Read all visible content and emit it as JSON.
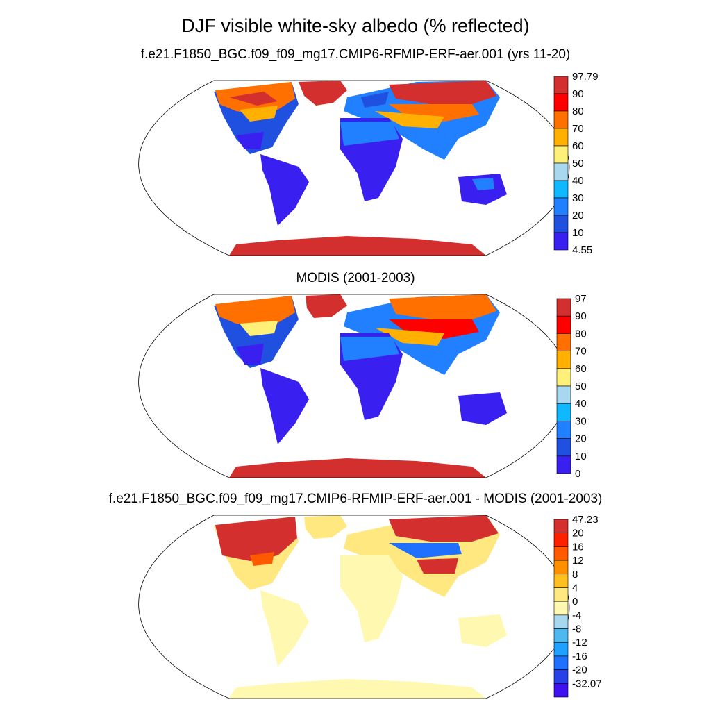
{
  "title": "DJF visible white-sky albedo (% reflected)",
  "panels": [
    {
      "title": "f.e21.F1850_BGC.f09_f09_mg17.CMIP6-RFMIP-ERF-aer.001 (yrs 11-20)",
      "colorbar": {
        "labels": [
          "97.79",
          "90",
          "80",
          "70",
          "60",
          "50",
          "40",
          "30",
          "20",
          "10",
          "4.55"
        ],
        "colors": [
          "#d32f2f",
          "#ff0000",
          "#ff7000",
          "#ffb000",
          "#fff07a",
          "#a8d8f0",
          "#10b8ff",
          "#2080ff",
          "#2050e0",
          "#3a20f0"
        ]
      }
    },
    {
      "title": "MODIS (2001-2003)",
      "colorbar": {
        "labels": [
          "97",
          "90",
          "80",
          "70",
          "60",
          "50",
          "40",
          "30",
          "20",
          "10",
          "0"
        ],
        "colors": [
          "#d32f2f",
          "#ff0000",
          "#ff7000",
          "#ffb000",
          "#fff07a",
          "#a8d8f0",
          "#10b8ff",
          "#2080ff",
          "#2050e0",
          "#3a20f0"
        ]
      }
    },
    {
      "title": "f.e21.F1850_BGC.f09_f09_mg17.CMIP6-RFMIP-ERF-aer.001 - MODIS (2001-2003)",
      "colorbar": {
        "labels": [
          "47.23",
          "20",
          "16",
          "12",
          "8",
          "4",
          "0",
          "-4",
          "-8",
          "-12",
          "-16",
          "-20",
          "-32.07"
        ],
        "colors": [
          "#d32f2f",
          "#ff2000",
          "#ff5a00",
          "#ff9000",
          "#ffc020",
          "#ffe880",
          "#fff8b0",
          "#a8d8f0",
          "#50b8f0",
          "#20a0ff",
          "#2070ff",
          "#2840e8",
          "#4010f0"
        ]
      }
    }
  ]
}
